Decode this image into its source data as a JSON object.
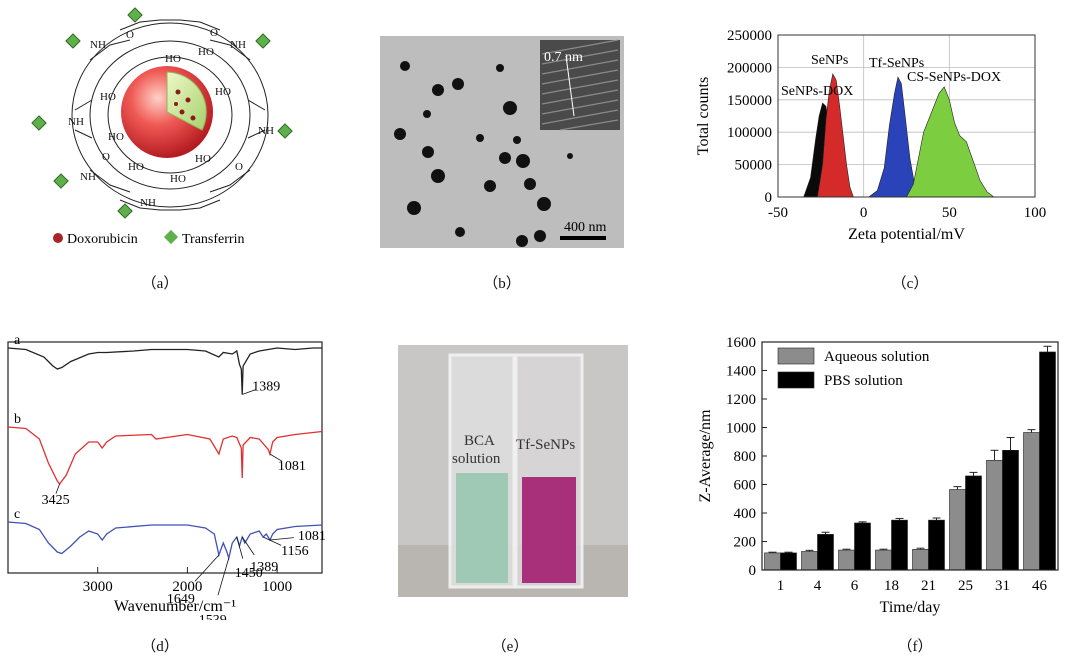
{
  "panels": {
    "a": {
      "caption": "（a）",
      "legend": [
        {
          "label": "Doxorubicin",
          "color": "#a82428",
          "icon": "doxorubicin-dot-icon"
        },
        {
          "label": "Transferrin",
          "color": "#5fb04a",
          "icon": "transferrin-diamond-icon"
        }
      ],
      "labels": {
        "nh": "NH",
        "oh": "HO",
        "o": "O"
      }
    },
    "b": {
      "caption": "（b）",
      "inset_label": "0.7 nm",
      "scale_bar": "400 nm"
    },
    "c": {
      "caption": "（c）",
      "chart_data": {
        "type": "area",
        "xlabel": "Zeta potential/mV",
        "ylabel": "Total counts",
        "xlim": [
          -50,
          100
        ],
        "ylim": [
          0,
          250000
        ],
        "xticks": [
          -50,
          0,
          50,
          100
        ],
        "yticks": [
          0,
          50000,
          100000,
          150000,
          200000,
          250000
        ],
        "grid": true,
        "series": [
          {
            "name": "SeNPs-DOX",
            "color": "#0a0a0a",
            "x": [
              -35,
              -31,
              -28,
              -26,
              -24,
              -22,
              -20,
              -18,
              -16,
              -14
            ],
            "y": [
              0,
              30000,
              90000,
              125000,
              145000,
              140000,
              105000,
              60000,
              20000,
              0
            ]
          },
          {
            "name": "SeNPs",
            "color": "#d42a2a",
            "x": [
              -27,
              -24,
              -22,
              -20,
              -18,
              -16,
              -14,
              -12,
              -10,
              -8,
              -6
            ],
            "y": [
              0,
              50000,
              120000,
              165000,
              190000,
              180000,
              140000,
              95000,
              50000,
              15000,
              0
            ]
          },
          {
            "name": "Tf-SeNPs",
            "color": "#2b43b8",
            "x": [
              3,
              8,
              12,
              15,
              18,
              20,
              22,
              24,
              27,
              30,
              33
            ],
            "y": [
              0,
              10000,
              45000,
              110000,
              160000,
              185000,
              175000,
              130000,
              60000,
              15000,
              0
            ]
          },
          {
            "name": "CS-SeNPs-DOX",
            "color": "#7ccd3f",
            "x": [
              25,
              29,
              32,
              35,
              38,
              41,
              44,
              47,
              50,
              53,
              56,
              60,
              64,
              68,
              72,
              76
            ],
            "y": [
              0,
              20000,
              60000,
              100000,
              120000,
              140000,
              160000,
              170000,
              150000,
              115000,
              95000,
              85000,
              55000,
              25000,
              8000,
              0
            ]
          }
        ],
        "legend": [
          "SeNPs",
          "Tf-SeNPs",
          "SeNPs-DOX",
          "CS-SeNPs-DOX"
        ]
      }
    },
    "d": {
      "caption": "（d）",
      "chart_data": {
        "type": "line",
        "xlabel": "Wavenumber/cm⁻¹",
        "xlim": [
          4000,
          500
        ],
        "xticks": [
          3000,
          2000,
          1000
        ],
        "series": [
          {
            "name": "a",
            "color": "#222222",
            "x": [
              4000,
              3800,
              3600,
              3500,
              3450,
              3400,
              3300,
              3100,
              3000,
              2900,
              2600,
              2400,
              2000,
              1800,
              1650,
              1600,
              1500,
              1450,
              1420,
              1400,
              1389,
              1380,
              1300,
              1200,
              1100,
              1000,
              800,
              600,
              500
            ],
            "y": [
              96,
              95,
              90,
              84,
              82,
              83,
              87,
              92,
              93,
              93,
              94,
              95,
              95,
              94,
              90,
              93,
              92,
              94,
              85,
              82,
              65,
              84,
              92,
              94,
              95,
              96,
              95,
              96,
              96
            ]
          },
          {
            "name": "b",
            "color": "#e03030",
            "x": [
              4000,
              3800,
              3650,
              3550,
              3450,
              3425,
              3350,
              3250,
              3100,
              3000,
              2950,
              2900,
              2800,
              2400,
              2350,
              2000,
              1750,
              1649,
              1600,
              1500,
              1450,
              1400,
              1389,
              1380,
              1300,
              1200,
              1100,
              1081,
              1050,
              1000,
              800,
              500
            ],
            "y": [
              80,
              79,
              72,
              56,
              44,
              42,
              48,
              62,
              70,
              70,
              66,
              70,
              74,
              75,
              72,
              75,
              72,
              62,
              72,
              74,
              73,
              66,
              46,
              68,
              73,
              72,
              65,
              62,
              70,
              73,
              75,
              77
            ]
          },
          {
            "name": "c",
            "color": "#3f52b6",
            "x": [
              4000,
              3800,
              3650,
              3550,
              3450,
              3400,
              3300,
              3200,
              3100,
              3000,
              2950,
              2900,
              2800,
              2400,
              2000,
              1800,
              1700,
              1649,
              1600,
              1560,
              1539,
              1500,
              1450,
              1420,
              1389,
              1360,
              1300,
              1200,
              1156,
              1120,
              1081,
              1050,
              1000,
              800,
              500
            ],
            "y": [
              60,
              59,
              55,
              46,
              40,
              39,
              44,
              50,
              54,
              52,
              48,
              52,
              56,
              58,
              58,
              56,
              52,
              38,
              46,
              40,
              36,
              46,
              50,
              44,
              50,
              46,
              52,
              54,
              50,
              52,
              48,
              52,
              55,
              57,
              58
            ]
          }
        ],
        "annotations": [
          {
            "text": "1389",
            "x": 1389,
            "series": "a"
          },
          {
            "text": "1081",
            "x": 1081,
            "series": "b"
          },
          {
            "text": "3425",
            "x": 3425,
            "series": "b"
          },
          {
            "text": "1081",
            "x": 1081,
            "series": "c"
          },
          {
            "text": "1156",
            "x": 1156,
            "series": "c"
          },
          {
            "text": "1389",
            "x": 1389,
            "series": "c"
          },
          {
            "text": "1450",
            "x": 1450,
            "series": "c"
          },
          {
            "text": "1649",
            "x": 1649,
            "series": "c"
          },
          {
            "text": "1539",
            "x": 1539,
            "series": "c"
          }
        ]
      }
    },
    "e": {
      "caption": "（e）",
      "left_label_lines": [
        "BCA",
        "solution"
      ],
      "right_label": "Tf-SeNPs",
      "left_liquid": "#9fc9b4",
      "right_liquid": "#a8307a"
    },
    "f": {
      "caption": "（f）",
      "chart_data": {
        "type": "bar",
        "xlabel": "Time/day",
        "ylabel": "Z-Average/nm",
        "ylim": [
          0,
          1600
        ],
        "yticks": [
          0,
          200,
          400,
          600,
          800,
          1000,
          1200,
          1400,
          1600
        ],
        "categories": [
          "1",
          "4",
          "6",
          "18",
          "21",
          "25",
          "31",
          "46"
        ],
        "series": [
          {
            "name": "Aqueous solution",
            "color": "#8c8c8c",
            "values": [
              120,
              130,
              140,
              140,
              145,
              565,
              770,
              965
            ],
            "errors": [
              5,
              8,
              6,
              6,
              8,
              20,
              70,
              20
            ]
          },
          {
            "name": "PBS solution",
            "color": "#000000",
            "values": [
              120,
              250,
              330,
              350,
              350,
              660,
              840,
              1530
            ],
            "errors": [
              5,
              15,
              8,
              12,
              15,
              25,
              90,
              40
            ]
          }
        ],
        "legend_position": "top-left"
      }
    }
  }
}
